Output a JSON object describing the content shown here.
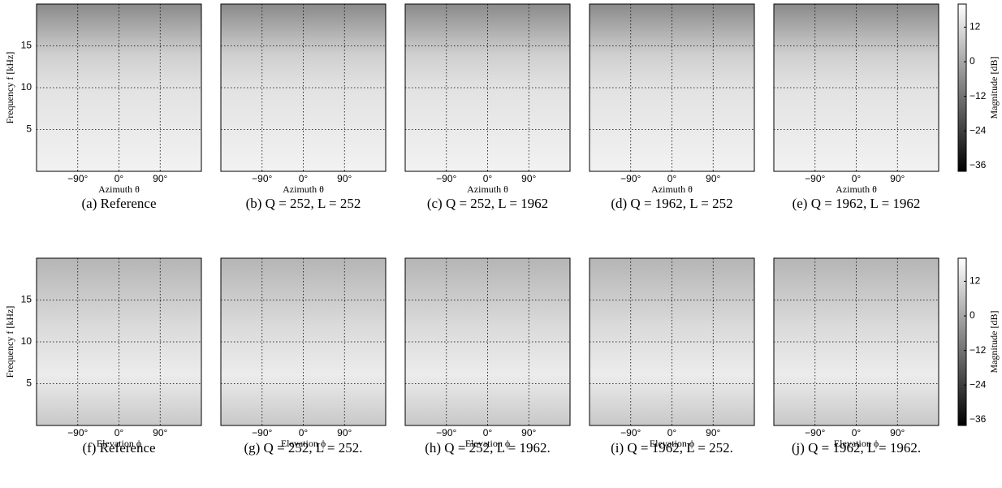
{
  "chart_data": [
    {
      "type": "heatmap",
      "caption": "(a)  Reference",
      "xlabel": "Azimuth θ",
      "ylabel": "Frequency f [kHz]",
      "xlim": [
        -180,
        180
      ],
      "xticks": [
        {
          "value": -90,
          "label": "−90°"
        },
        {
          "value": 0,
          "label": "0°"
        },
        {
          "value": 90,
          "label": "90°"
        }
      ],
      "ylim": [
        0,
        20
      ],
      "yticks": [
        5,
        10,
        15
      ],
      "grid": true
    },
    {
      "type": "heatmap",
      "caption": "(b) Q = 252, L = 252",
      "xlabel": "Azimuth θ",
      "xlim": [
        -180,
        180
      ],
      "xticks": [
        {
          "value": -90,
          "label": "−90°"
        },
        {
          "value": 0,
          "label": "0°"
        },
        {
          "value": 90,
          "label": "90°"
        }
      ],
      "ylim": [
        0,
        20
      ],
      "yticks": [
        5,
        10,
        15
      ],
      "grid": true
    },
    {
      "type": "heatmap",
      "caption": "(c) Q = 252, L = 1962",
      "xlabel": "Azimuth θ",
      "xlim": [
        -180,
        180
      ],
      "xticks": [
        {
          "value": -90,
          "label": "−90°"
        },
        {
          "value": 0,
          "label": "0°"
        },
        {
          "value": 90,
          "label": "90°"
        }
      ],
      "ylim": [
        0,
        20
      ],
      "yticks": [
        5,
        10,
        15
      ],
      "grid": true
    },
    {
      "type": "heatmap",
      "caption": "(d) Q = 1962, L = 252",
      "xlabel": "Azimuth θ",
      "xlim": [
        -180,
        180
      ],
      "xticks": [
        {
          "value": -90,
          "label": "−90°"
        },
        {
          "value": 0,
          "label": "0°"
        },
        {
          "value": 90,
          "label": "90°"
        }
      ],
      "ylim": [
        0,
        20
      ],
      "yticks": [
        5,
        10,
        15
      ],
      "grid": true
    },
    {
      "type": "heatmap",
      "caption": "(e) Q = 1962, L = 1962",
      "xlabel": "Azimuth θ",
      "xlim": [
        -180,
        180
      ],
      "xticks": [
        {
          "value": -90,
          "label": "−90°"
        },
        {
          "value": 0,
          "label": "0°"
        },
        {
          "value": 90,
          "label": "90°"
        }
      ],
      "ylim": [
        0,
        20
      ],
      "yticks": [
        5,
        10,
        15
      ],
      "grid": true,
      "colorbar": {
        "label": "Magnitude [dB]",
        "lim": [
          -38,
          20
        ],
        "ticks": [
          12,
          0,
          {
            "value": -12,
            "label": "−12"
          },
          {
            "value": -24,
            "label": "−24"
          },
          {
            "value": -36,
            "label": "−36"
          }
        ]
      }
    },
    {
      "type": "heatmap",
      "caption": "(f)  Reference",
      "xlabel": "Elevation ϕ",
      "ylabel": "Frequency f [kHz]",
      "xlim": [
        -180,
        180
      ],
      "xticks": [
        {
          "value": -90,
          "label": "−90°"
        },
        {
          "value": 0,
          "label": "0°"
        },
        {
          "value": 90,
          "label": "90°"
        }
      ],
      "ylim": [
        0,
        20
      ],
      "yticks": [
        5,
        10,
        15
      ],
      "grid": true
    },
    {
      "type": "heatmap",
      "caption": "(g) Q = 252, L = 252.",
      "xlabel": "Elevation ϕ",
      "xlim": [
        -180,
        180
      ],
      "xticks": [
        {
          "value": -90,
          "label": "−90°"
        },
        {
          "value": 0,
          "label": "0°"
        },
        {
          "value": 90,
          "label": "90°"
        }
      ],
      "ylim": [
        0,
        20
      ],
      "yticks": [
        5,
        10,
        15
      ],
      "grid": true
    },
    {
      "type": "heatmap",
      "caption": "(h) Q = 252, L = 1962.",
      "xlabel": "Elevation ϕ",
      "xlim": [
        -180,
        180
      ],
      "xticks": [
        {
          "value": -90,
          "label": "−90°"
        },
        {
          "value": 0,
          "label": "0°"
        },
        {
          "value": 90,
          "label": "90°"
        }
      ],
      "ylim": [
        0,
        20
      ],
      "yticks": [
        5,
        10,
        15
      ],
      "grid": true
    },
    {
      "type": "heatmap",
      "caption": "(i) Q = 1962, L = 252.",
      "xlabel": "Elevation ϕ",
      "xlim": [
        -180,
        180
      ],
      "xticks": [
        {
          "value": -90,
          "label": "−90°"
        },
        {
          "value": 0,
          "label": "0°"
        },
        {
          "value": 90,
          "label": "90°"
        }
      ],
      "ylim": [
        0,
        20
      ],
      "yticks": [
        5,
        10,
        15
      ],
      "grid": true
    },
    {
      "type": "heatmap",
      "caption": "(j) Q = 1962, L = 1962.",
      "xlabel": "Elevation ϕ",
      "xlim": [
        -180,
        180
      ],
      "xticks": [
        {
          "value": -90,
          "label": "−90°"
        },
        {
          "value": 0,
          "label": "0°"
        },
        {
          "value": 90,
          "label": "90°"
        }
      ],
      "ylim": [
        0,
        20
      ],
      "yticks": [
        5,
        10,
        15
      ],
      "grid": true,
      "colorbar": {
        "label": "Magnitude [dB]",
        "lim": [
          -38,
          20
        ],
        "ticks": [
          12,
          0,
          {
            "value": -12,
            "label": "−12"
          },
          {
            "value": -24,
            "label": "−24"
          },
          {
            "value": -36,
            "label": "−36"
          }
        ]
      }
    }
  ]
}
